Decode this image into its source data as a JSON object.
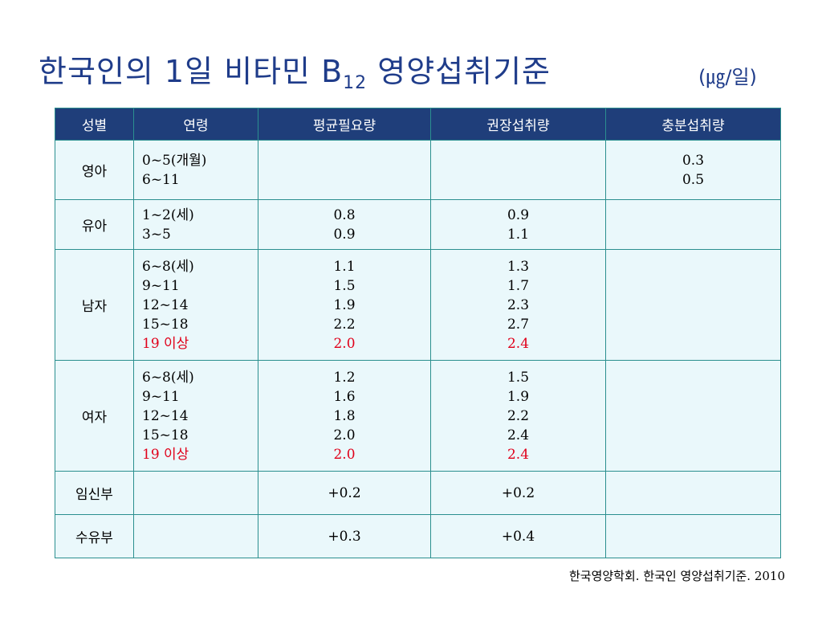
{
  "title": {
    "main": "한국인의 1일 비타민 B",
    "sub": "12",
    "rest": " 영양섭취기준",
    "unit": "(㎍/일)"
  },
  "headers": [
    "성별",
    "연령",
    "평균필요량",
    "권장섭취량",
    "충분섭취량"
  ],
  "rows": [
    {
      "sex": "영아",
      "ages": [
        {
          "text": "0~5(개월)",
          "hl": false
        },
        {
          "text": "6~11",
          "hl": false
        }
      ],
      "ear": [],
      "rni": [],
      "ai": [
        {
          "text": "0.3",
          "hl": false
        },
        {
          "text": "0.5",
          "hl": false
        }
      ]
    },
    {
      "sex": "유아",
      "ages": [
        {
          "text": "1~2(세)",
          "hl": false
        },
        {
          "text": "3~5",
          "hl": false
        }
      ],
      "ear": [
        {
          "text": "0.8",
          "hl": false
        },
        {
          "text": "0.9",
          "hl": false
        }
      ],
      "rni": [
        {
          "text": "0.9",
          "hl": false
        },
        {
          "text": "1.1",
          "hl": false
        }
      ],
      "ai": []
    },
    {
      "sex": "남자",
      "ages": [
        {
          "text": "6~8(세)",
          "hl": false
        },
        {
          "text": "9~11",
          "hl": false
        },
        {
          "text": "12~14",
          "hl": false
        },
        {
          "text": "15~18",
          "hl": false
        },
        {
          "text": "19 이상",
          "hl": true
        }
      ],
      "ear": [
        {
          "text": "1.1",
          "hl": false
        },
        {
          "text": "1.5",
          "hl": false
        },
        {
          "text": "1.9",
          "hl": false
        },
        {
          "text": "2.2",
          "hl": false
        },
        {
          "text": "2.0",
          "hl": true
        }
      ],
      "rni": [
        {
          "text": "1.3",
          "hl": false
        },
        {
          "text": "1.7",
          "hl": false
        },
        {
          "text": "2.3",
          "hl": false
        },
        {
          "text": "2.7",
          "hl": false
        },
        {
          "text": "2.4",
          "hl": true
        }
      ],
      "ai": []
    },
    {
      "sex": "여자",
      "ages": [
        {
          "text": "6~8(세)",
          "hl": false
        },
        {
          "text": "9~11",
          "hl": false
        },
        {
          "text": "12~14",
          "hl": false
        },
        {
          "text": "15~18",
          "hl": false
        },
        {
          "text": "19 이상",
          "hl": true
        }
      ],
      "ear": [
        {
          "text": "1.2",
          "hl": false
        },
        {
          "text": "1.6",
          "hl": false
        },
        {
          "text": "1.8",
          "hl": false
        },
        {
          "text": "2.0",
          "hl": false
        },
        {
          "text": "2.0",
          "hl": true
        }
      ],
      "rni": [
        {
          "text": "1.5",
          "hl": false
        },
        {
          "text": "1.9",
          "hl": false
        },
        {
          "text": "2.2",
          "hl": false
        },
        {
          "text": "2.4",
          "hl": false
        },
        {
          "text": "2.4",
          "hl": true
        }
      ],
      "ai": []
    },
    {
      "sex": "임신부",
      "ages": [],
      "ear": [
        {
          "text": "+0.2",
          "hl": false
        }
      ],
      "rni": [
        {
          "text": "+0.2",
          "hl": false
        }
      ],
      "ai": []
    },
    {
      "sex": "수유부",
      "ages": [],
      "ear": [
        {
          "text": "+0.3",
          "hl": false
        }
      ],
      "rni": [
        {
          "text": "+0.4",
          "hl": false
        }
      ],
      "ai": []
    }
  ],
  "source": "한국영양학회. 한국인 영양섭취기준. 2010",
  "colors": {
    "title": "#1f3c8a",
    "header_bg": "#1f3e7a",
    "cell_bg": "#eaf8fb",
    "border": "#2b8f8f",
    "highlight": "#e0001a"
  }
}
